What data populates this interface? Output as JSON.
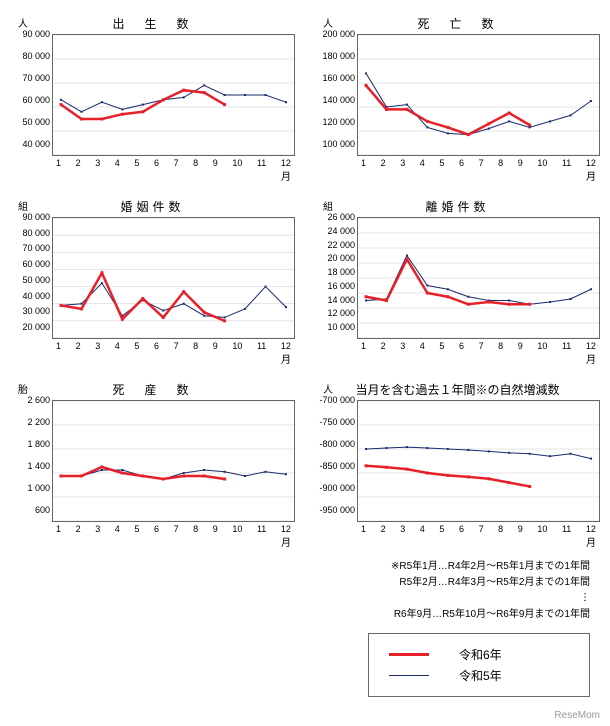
{
  "colors": {
    "red": "#e6212a",
    "blue": "#1a2a6c",
    "grid": "#cccccc",
    "border": "#666666",
    "bg": "#ffffff"
  },
  "typography": {
    "title_fontsize": 12,
    "axis_fontsize": 9,
    "unit_fontsize": 10,
    "footnote_fontsize": 10,
    "legend_fontsize": 12
  },
  "line_widths": {
    "red": 2.5,
    "blue": 1,
    "grid": 0.5
  },
  "marker": {
    "shape": "square",
    "size": 4
  },
  "x_axis": {
    "values": [
      1,
      2,
      3,
      4,
      5,
      6,
      7,
      8,
      9,
      10,
      11,
      12
    ],
    "unit": "月"
  },
  "charts": [
    {
      "title": "出　生　数",
      "unit": "人",
      "ylim": [
        40000,
        90000
      ],
      "ystep": 10000,
      "red": [
        61000,
        55000,
        55000,
        57000,
        58000,
        63000,
        67000,
        66000,
        61000
      ],
      "blue": [
        63000,
        58000,
        62000,
        59000,
        61000,
        63000,
        64000,
        69000,
        65000,
        65000,
        65000,
        62000
      ]
    },
    {
      "title": "死　亡　数",
      "unit": "人",
      "ylim": [
        100000,
        200000
      ],
      "ystep": 20000,
      "red": [
        158000,
        138000,
        138000,
        128000,
        123000,
        117000,
        126000,
        135000,
        125000
      ],
      "blue": [
        168000,
        140000,
        142000,
        123000,
        118000,
        117000,
        122000,
        128000,
        123000,
        128000,
        133000,
        145000
      ]
    },
    {
      "title": "婚姻件数",
      "unit": "組",
      "ylim": [
        20000,
        90000
      ],
      "ystep": 10000,
      "red": [
        39000,
        37000,
        58000,
        31000,
        43000,
        32000,
        47000,
        35000,
        30000
      ],
      "blue": [
        39000,
        40000,
        52000,
        33000,
        42000,
        36000,
        40000,
        33000,
        32000,
        37000,
        50000,
        38000
      ]
    },
    {
      "title": "離婚件数",
      "unit": "組",
      "ylim": [
        10000,
        26000
      ],
      "ystep": 2000,
      "red": [
        15500,
        15000,
        20500,
        16000,
        15500,
        14500,
        14800,
        14500,
        14500
      ],
      "blue": [
        15000,
        15200,
        21000,
        17000,
        16500,
        15500,
        15000,
        15000,
        14500,
        14800,
        15200,
        16500
      ]
    },
    {
      "title": "死　産　数",
      "unit": "胎",
      "ylim": [
        600,
        2600
      ],
      "ystep": 400,
      "red": [
        1350,
        1350,
        1500,
        1400,
        1350,
        1300,
        1350,
        1350,
        1300
      ],
      "blue": [
        1350,
        1350,
        1450,
        1450,
        1350,
        1300,
        1400,
        1450,
        1420,
        1350,
        1420,
        1380
      ]
    },
    {
      "title": "当月を含む過去１年間※の自然増減数",
      "unit": "人",
      "ylim": [
        -950000,
        -700000
      ],
      "ystep": 50000,
      "tight": true,
      "red": [
        -835000,
        -838000,
        -842000,
        -850000,
        -855000,
        -858000,
        -862000,
        -870000,
        -878000
      ],
      "blue": [
        -800000,
        -798000,
        -796000,
        -798000,
        -800000,
        -802000,
        -805000,
        -808000,
        -810000,
        -815000,
        -810000,
        -820000
      ]
    }
  ],
  "footnotes": {
    "line1": "※R5年1月…R4年2月～R5年1月までの1年間",
    "line2": "R5年2月…R4年3月～R5年2月までの1年間",
    "line3": "︙",
    "line4": "R6年9月…R5年10月～R6年9月までの1年間"
  },
  "legend": {
    "red_label": "令和6年",
    "blue_label": "令和5年"
  },
  "watermark": "ReseMom"
}
